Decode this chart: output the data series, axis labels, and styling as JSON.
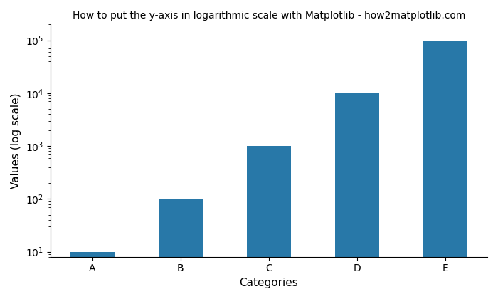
{
  "categories": [
    "A",
    "B",
    "C",
    "D",
    "E"
  ],
  "values": [
    10,
    100,
    1000,
    10000,
    100000
  ],
  "bar_color": "#2878a8",
  "title": "How to put the y-axis in logarithmic scale with Matplotlib - how2matplotlib.com",
  "xlabel": "Categories",
  "ylabel": "Values (log scale)",
  "title_fontsize": 10,
  "label_fontsize": 11,
  "yscale": "log",
  "ylim_low": 8,
  "ylim_high": 200000,
  "bar_width": 0.5
}
